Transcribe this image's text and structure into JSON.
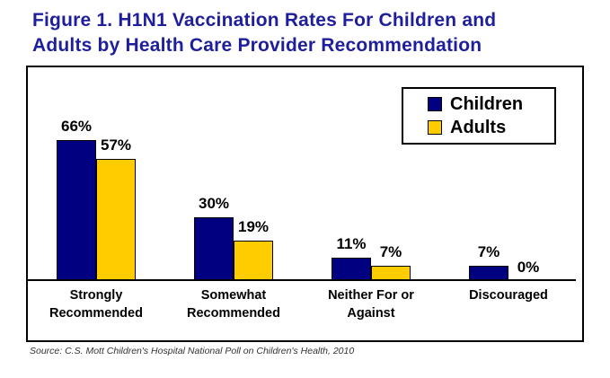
{
  "title": {
    "line1": "Figure 1. H1N1 Vaccination Rates For Children and",
    "line2": "Adults by Health Care Provider Recommendation"
  },
  "legend": {
    "items": [
      {
        "label": "Children",
        "color": "#000080"
      },
      {
        "label": "Adults",
        "color": "#ffcc00"
      }
    ]
  },
  "source": "Source: C.S. Mott Children's Hospital National Poll on Children's Health, 2010",
  "colors": {
    "title_navy": "#1f1f9c",
    "children_bar": "#000080",
    "adults_bar": "#ffcc00",
    "axis": "#000000"
  },
  "chart_data": {
    "type": "bar",
    "title": "Figure 1. H1N1 Vaccination Rates For Children and Adults by Health Care Provider Recommendation",
    "categories": [
      "Strongly Recommended",
      "Somewhat Recommended",
      "Neither For or Against",
      "Discouraged"
    ],
    "categories_display": [
      "Strongly\nRecommended",
      "Somewhat\nRecommended",
      "Neither For or\nAgainst",
      "Discouraged"
    ],
    "series": [
      {
        "name": "Children",
        "color": "#000080",
        "values": [
          66,
          30,
          11,
          7
        ]
      },
      {
        "name": "Adults",
        "color": "#ffcc00",
        "values": [
          57,
          19,
          7,
          0
        ]
      }
    ],
    "value_label_format": "{value}%",
    "xlabel": "",
    "ylabel": "",
    "ylim": [
      0,
      100
    ],
    "grid": false,
    "y_axis_ticks_visible": false,
    "legend_position": "top-right",
    "unit": "%"
  }
}
